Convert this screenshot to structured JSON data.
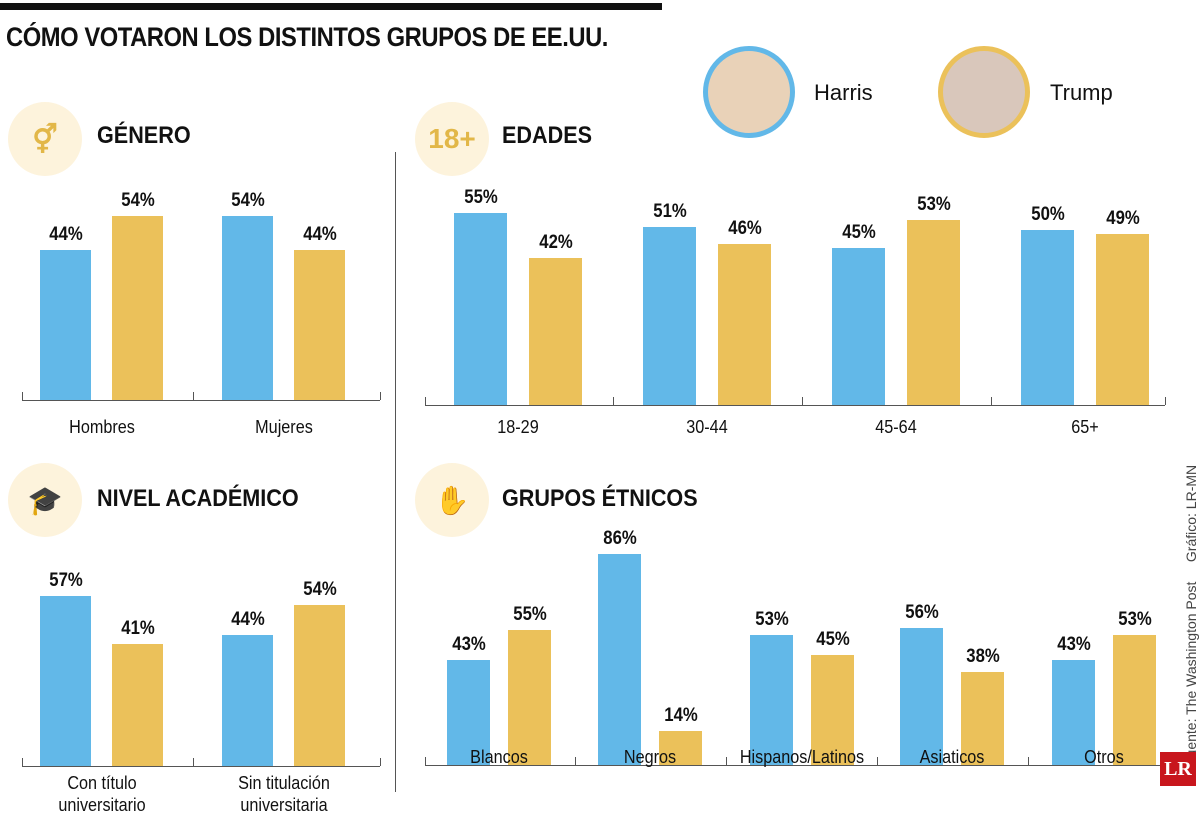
{
  "title": "CÓMO VOTARON LOS DISTINTOS GRUPOS DE EE.UU.",
  "legend": [
    {
      "name": "Harris",
      "color": "#62b8e8"
    },
    {
      "name": "Trump",
      "color": "#ebc15a"
    }
  ],
  "credits": {
    "source": "Fuente: The Washington Post",
    "graphic": "Gráfico: LR-MN"
  },
  "logo": "LR",
  "chart_data": [
    {
      "type": "bar",
      "title": "GÉNERO",
      "icon": "gender-icon",
      "categories": [
        "Hombres",
        "Mujeres"
      ],
      "series": [
        {
          "name": "Harris",
          "values": [
            44,
            54
          ]
        },
        {
          "name": "Trump",
          "values": [
            54,
            44
          ]
        }
      ],
      "labels": [
        [
          "44%",
          "54%"
        ],
        [
          "54%",
          "44%"
        ]
      ]
    },
    {
      "type": "bar",
      "title": "EDADES",
      "icon": "age-18-plus-icon",
      "categories": [
        "18-29",
        "30-44",
        "45-64",
        "65+"
      ],
      "series": [
        {
          "name": "Harris",
          "values": [
            55,
            51,
            45,
            50
          ]
        },
        {
          "name": "Trump",
          "values": [
            42,
            46,
            53,
            49
          ]
        }
      ],
      "labels": [
        [
          "55%",
          "51%",
          "45%",
          "50%"
        ],
        [
          "42%",
          "46%",
          "53%",
          "49%"
        ]
      ]
    },
    {
      "type": "bar",
      "title": "NIVEL ACADÉMICO",
      "icon": "graduation-icon",
      "categories": [
        "Con título universitario",
        "Sin titulación universitaria"
      ],
      "series": [
        {
          "name": "Harris",
          "values": [
            57,
            44
          ]
        },
        {
          "name": "Trump",
          "values": [
            41,
            54
          ]
        }
      ],
      "labels": [
        [
          "57%",
          "44%"
        ],
        [
          "41%",
          "54%"
        ]
      ]
    },
    {
      "type": "bar",
      "title": "GRUPOS ÉTNICOS",
      "icon": "ethnic-groups-icon",
      "categories": [
        "Blancos",
        "Negros",
        "Hispanos/Latinos",
        "Asiaticos",
        "Otros"
      ],
      "series": [
        {
          "name": "Harris",
          "values": [
            43,
            86,
            53,
            56,
            43
          ]
        },
        {
          "name": "Trump",
          "values": [
            55,
            14,
            45,
            38,
            53
          ]
        }
      ],
      "labels": [
        [
          "43%",
          "86%",
          "53%",
          "56%",
          "43%"
        ],
        [
          "55%",
          "14%",
          "45%",
          "38%",
          "53%"
        ]
      ]
    }
  ]
}
